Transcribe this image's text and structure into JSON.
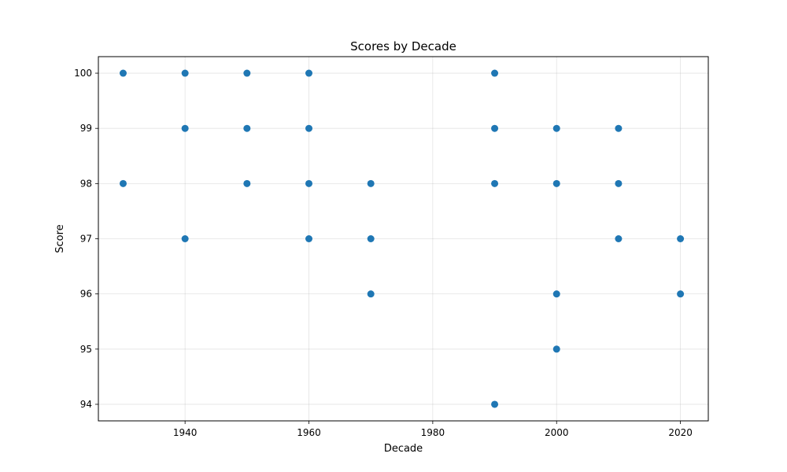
{
  "chart_data": {
    "type": "scatter",
    "title": "Scores by Decade",
    "xlabel": "Decade",
    "ylabel": "Score",
    "xlim": [
      1926,
      2024.5
    ],
    "ylim": [
      93.7,
      100.3
    ],
    "xticks": [
      1940,
      1960,
      1980,
      2000,
      2020
    ],
    "yticks": [
      94,
      95,
      96,
      97,
      98,
      99,
      100
    ],
    "grid": true,
    "marker_color": "#1f77b4",
    "series": [
      {
        "points": [
          {
            "x": 1930,
            "y": 100
          },
          {
            "x": 1930,
            "y": 98
          },
          {
            "x": 1940,
            "y": 100
          },
          {
            "x": 1940,
            "y": 99
          },
          {
            "x": 1940,
            "y": 97
          },
          {
            "x": 1950,
            "y": 100
          },
          {
            "x": 1950,
            "y": 99
          },
          {
            "x": 1950,
            "y": 98
          },
          {
            "x": 1960,
            "y": 100
          },
          {
            "x": 1960,
            "y": 99
          },
          {
            "x": 1960,
            "y": 98
          },
          {
            "x": 1960,
            "y": 97
          },
          {
            "x": 1970,
            "y": 98
          },
          {
            "x": 1970,
            "y": 97
          },
          {
            "x": 1970,
            "y": 96
          },
          {
            "x": 1990,
            "y": 100
          },
          {
            "x": 1990,
            "y": 99
          },
          {
            "x": 1990,
            "y": 98
          },
          {
            "x": 1990,
            "y": 94
          },
          {
            "x": 2000,
            "y": 99
          },
          {
            "x": 2000,
            "y": 98
          },
          {
            "x": 2000,
            "y": 96
          },
          {
            "x": 2000,
            "y": 95
          },
          {
            "x": 2010,
            "y": 99
          },
          {
            "x": 2010,
            "y": 98
          },
          {
            "x": 2010,
            "y": 97
          },
          {
            "x": 2020,
            "y": 97
          },
          {
            "x": 2020,
            "y": 96
          }
        ]
      }
    ]
  }
}
